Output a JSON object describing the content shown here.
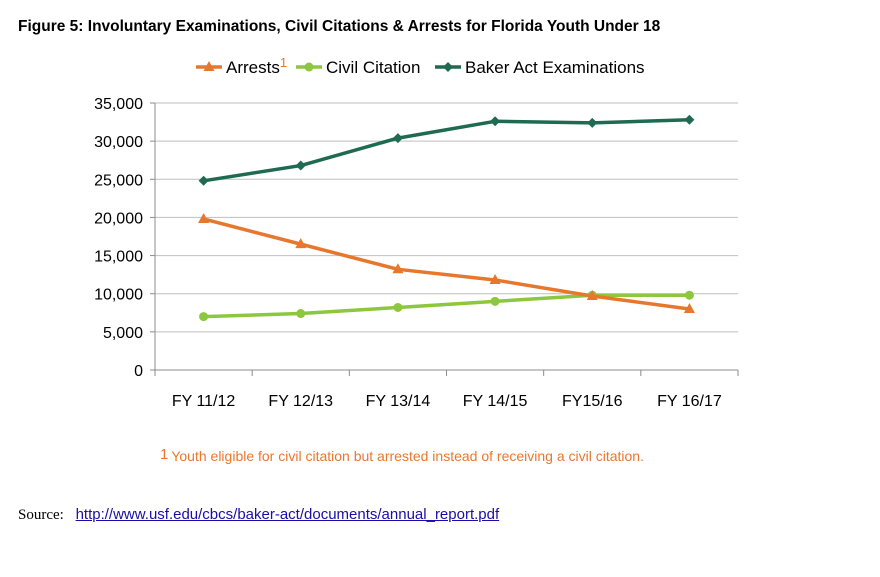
{
  "figure": {
    "title": "Figure 5:  Involuntary Examinations, Civil Citations & Arrests for Florida Youth Under 18"
  },
  "footnote": {
    "marker": "1",
    "text": "Youth eligible for civil citation but arrested instead of receiving a civil citation.",
    "color": "#e8772e"
  },
  "source": {
    "label": "Source:",
    "url": "http://www.usf.edu/cbcs/baker-act/documents/annual_report.pdf",
    "link_color": "#1a0dab"
  },
  "chart_data": {
    "type": "line",
    "title": "",
    "xlabel": "",
    "ylabel": "",
    "categories": [
      "FY 11/12",
      "FY 12/13",
      "FY 13/14",
      "FY 14/15",
      "FY15/16",
      "FY 16/17"
    ],
    "ylim": [
      0,
      35000
    ],
    "y_ticks": [
      0,
      5000,
      10000,
      15000,
      20000,
      25000,
      30000,
      35000
    ],
    "y_tick_labels": [
      "0",
      "5,000",
      "10,000",
      "15,000",
      "20,000",
      "25,000",
      "30,000",
      "35,000"
    ],
    "grid": "horizontal",
    "legend_position": "top",
    "series": [
      {
        "name": "Arrests",
        "superscript": "1",
        "color": "#e8772e",
        "marker": "triangle",
        "values": [
          19800,
          16500,
          13200,
          11800,
          9700,
          8000
        ]
      },
      {
        "name": "Civil Citation",
        "color": "#8dc63f",
        "marker": "circle",
        "values": [
          7000,
          7400,
          8200,
          9000,
          9800,
          9800
        ]
      },
      {
        "name": "Baker Act Examinations",
        "color": "#1e6b52",
        "marker": "diamond",
        "values": [
          24800,
          26800,
          30400,
          32600,
          32400,
          32800
        ]
      }
    ]
  }
}
